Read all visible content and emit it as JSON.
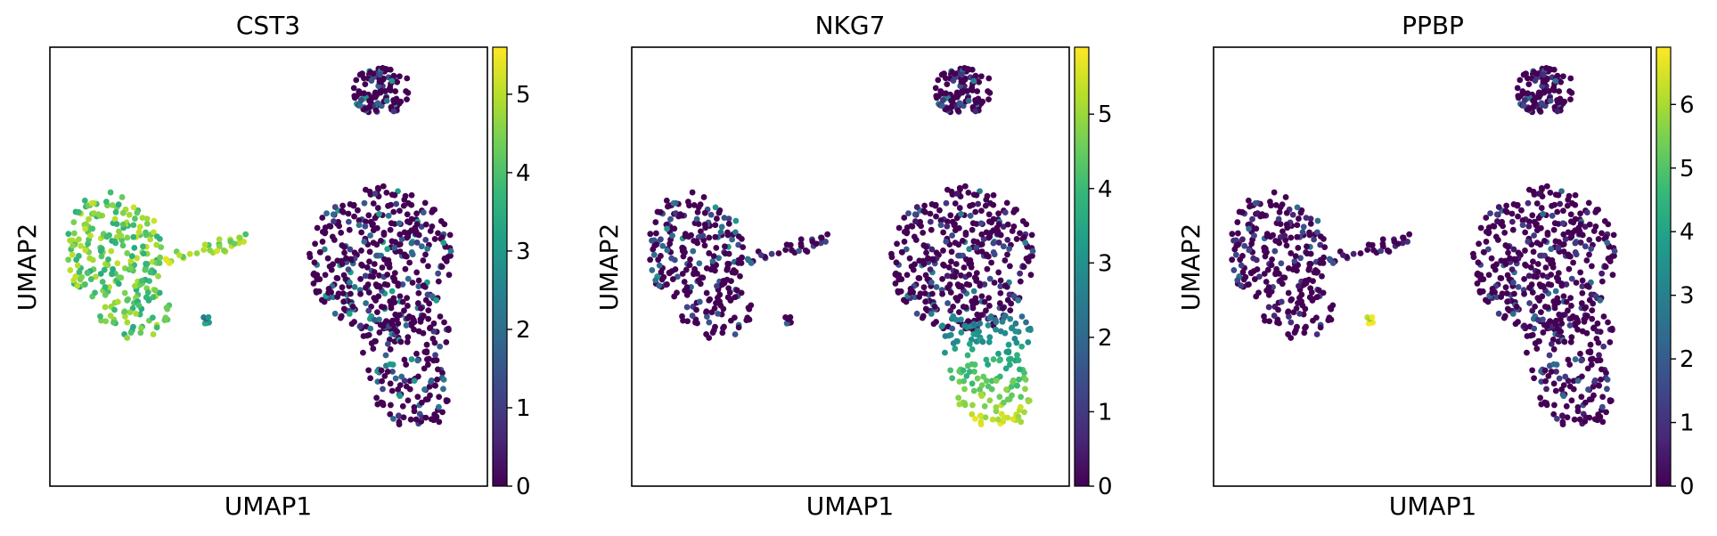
{
  "chart_data": [
    {
      "type": "scatter",
      "title": "CST3",
      "xlabel": "UMAP1",
      "ylabel": "UMAP2",
      "colorbar": {
        "range": [
          0,
          5.6
        ],
        "ticks": [
          0,
          1,
          2,
          3,
          4,
          5
        ],
        "colormap": "viridis"
      },
      "x_ticks_visible": false,
      "y_ticks_visible": false,
      "cluster_expression": {
        "upper-right": 0.7,
        "right-large": 0.9,
        "right-lower": 0.8,
        "left": 4.3,
        "left-arm": 4.6,
        "left-small": 2.6
      }
    },
    {
      "type": "scatter",
      "title": "NKG7",
      "xlabel": "UMAP1",
      "ylabel": "UMAP2",
      "colorbar": {
        "range": [
          0,
          5.9
        ],
        "ticks": [
          0,
          1,
          2,
          3,
          4,
          5
        ],
        "colormap": "viridis"
      },
      "x_ticks_visible": false,
      "y_ticks_visible": false,
      "cluster_expression": {
        "upper-right": 0.4,
        "right-large": 0.3,
        "right-lower": 4.8,
        "left": 0.9,
        "left-arm": 0.9,
        "left-small": 0.5
      }
    },
    {
      "type": "scatter",
      "title": "PPBP",
      "xlabel": "UMAP1",
      "ylabel": "UMAP2",
      "colorbar": {
        "range": [
          0,
          6.9
        ],
        "ticks": [
          0,
          1,
          2,
          3,
          4,
          5,
          6
        ],
        "colormap": "viridis"
      },
      "x_ticks_visible": false,
      "y_ticks_visible": false,
      "cluster_expression": {
        "upper-right": 0.3,
        "right-large": 0.2,
        "right-lower": 0.2,
        "left": 0.3,
        "left-arm": 0.5,
        "left-small": 6.4
      }
    }
  ],
  "colors": {
    "viridis_stops": [
      "#440154",
      "#482878",
      "#3e4989",
      "#31688e",
      "#26828e",
      "#1f9e89",
      "#35b779",
      "#6ece58",
      "#b5de2b",
      "#fde725"
    ]
  }
}
